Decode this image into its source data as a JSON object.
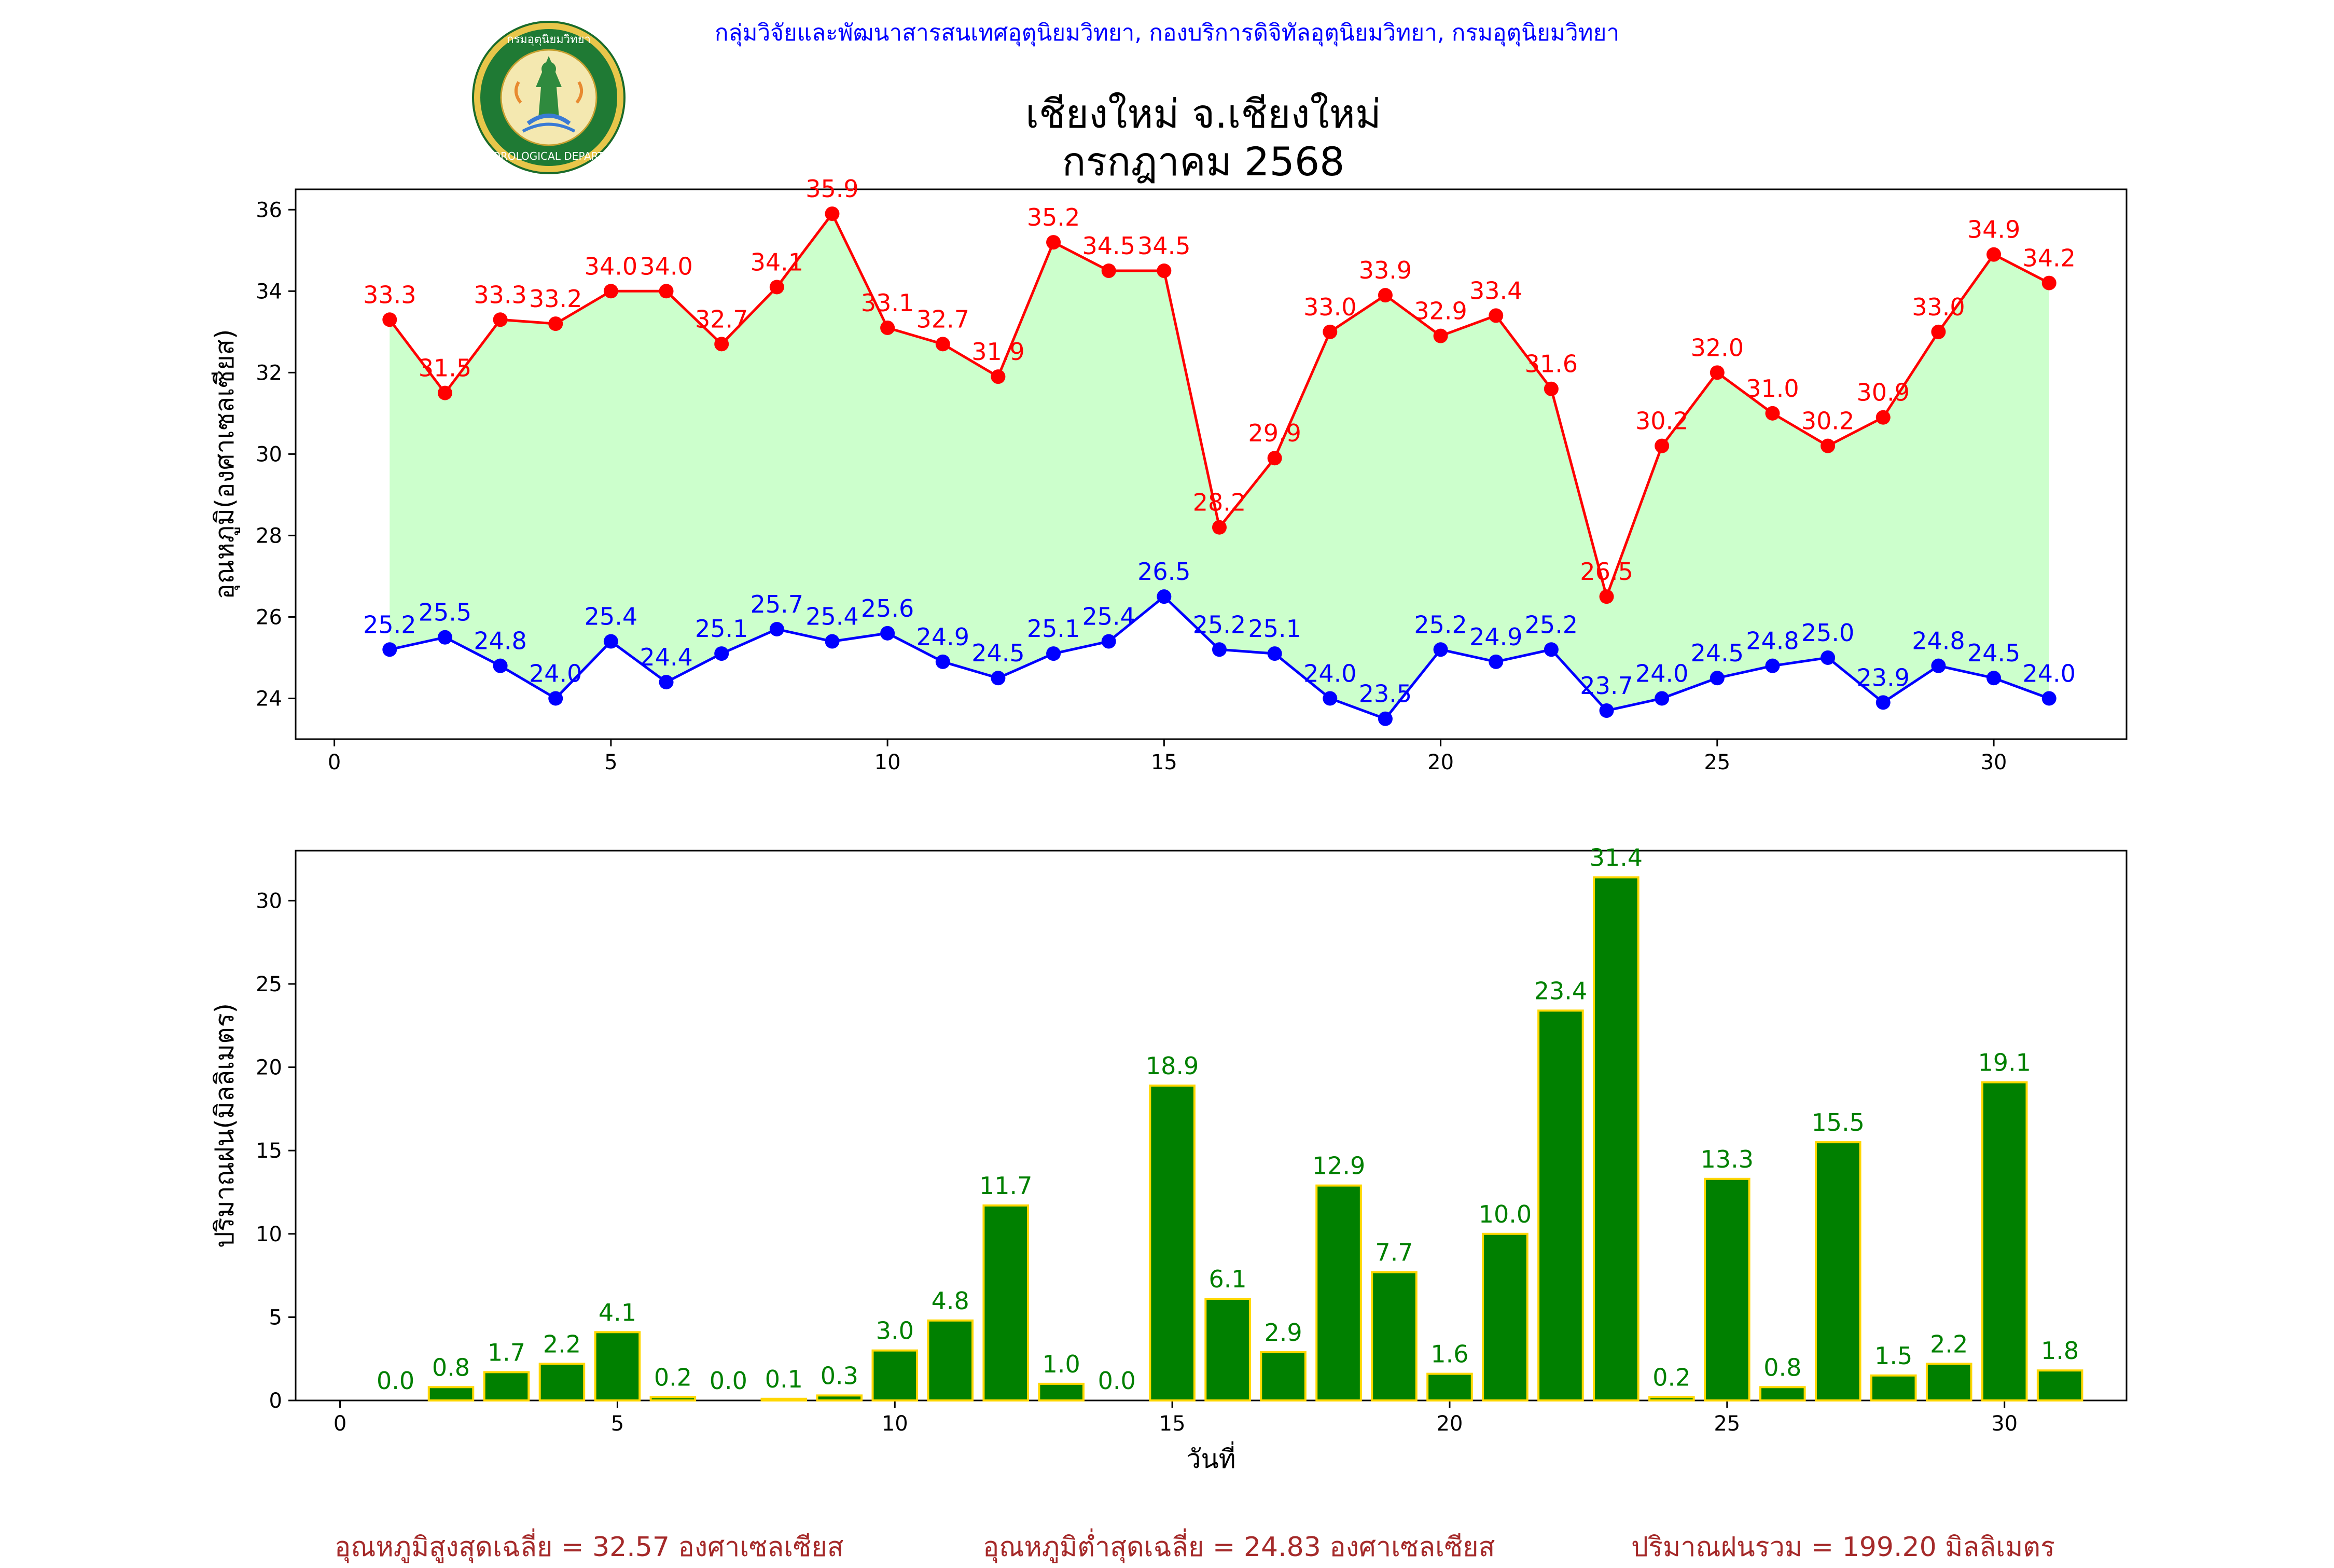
{
  "header": {
    "credit": "กลุ่มวิจัยและพัฒนาสารสนเทศอุตุนิยมวิทยา, กองบริการดิจิทัลอุตุนิยมวิทยา, กรมอุตุนิยมวิทยา",
    "title_line1": "เชียงใหม่ จ.เชียงใหม่",
    "title_line2": "กรกฎาคม 2568",
    "logo": {
      "text_top": "กรมอุตุนิยมวิทยา",
      "text_bottom": "METEOROLOGICAL DEPARTMENT"
    }
  },
  "colors": {
    "max_line": "#ff0000",
    "min_line": "#0000ff",
    "fill": "#ccffcc",
    "bar": "#008000",
    "bar_edge": "#ffd700",
    "bar_label": "#008000",
    "stats": "#a52a2a",
    "credit": "#0000ff"
  },
  "chart_data": [
    {
      "type": "line",
      "ylabel": "อุณหภูมิ(องศาเซลเซียส)",
      "xlim": [
        -0.7,
        32.4
      ],
      "ylim": [
        23.0,
        36.5
      ],
      "xticks": [
        0,
        5,
        10,
        15,
        20,
        25,
        30
      ],
      "yticks": [
        24,
        26,
        28,
        30,
        32,
        34,
        36
      ],
      "x": [
        1,
        2,
        3,
        4,
        5,
        6,
        7,
        8,
        9,
        10,
        11,
        12,
        13,
        14,
        15,
        16,
        17,
        18,
        19,
        20,
        21,
        22,
        23,
        24,
        25,
        26,
        27,
        28,
        29,
        30,
        31
      ],
      "series": [
        {
          "values": [
            33.3,
            31.5,
            33.3,
            33.2,
            34.0,
            34.0,
            32.7,
            34.1,
            35.9,
            33.1,
            32.7,
            31.9,
            35.2,
            34.5,
            34.5,
            28.2,
            29.9,
            33.0,
            33.9,
            32.9,
            33.4,
            31.6,
            26.5,
            30.2,
            32.0,
            31.0,
            30.2,
            30.9,
            33.0,
            34.9,
            34.2
          ],
          "color": "#ff0000"
        },
        {
          "values": [
            25.2,
            25.5,
            24.8,
            24.0,
            25.4,
            24.4,
            25.1,
            25.7,
            25.4,
            25.6,
            24.9,
            24.5,
            25.1,
            25.4,
            26.5,
            25.2,
            25.1,
            24.0,
            23.5,
            25.2,
            24.9,
            25.2,
            23.7,
            24.0,
            24.5,
            24.8,
            25.0,
            23.9,
            24.8,
            24.5,
            24.0
          ],
          "color": "#0000ff"
        }
      ],
      "fill_between": true,
      "grid": false
    },
    {
      "type": "bar",
      "ylabel": "ปริมาณฝน(มิลลิเมตร)",
      "xlabel": "วันที่",
      "xlim": [
        -0.8,
        32.2
      ],
      "ylim": [
        0,
        33.0
      ],
      "xticks": [
        0,
        5,
        10,
        15,
        20,
        25,
        30
      ],
      "yticks": [
        0,
        5,
        10,
        15,
        20,
        25,
        30
      ],
      "x": [
        1,
        2,
        3,
        4,
        5,
        6,
        7,
        8,
        9,
        10,
        11,
        12,
        13,
        14,
        15,
        16,
        17,
        18,
        19,
        20,
        21,
        22,
        23,
        24,
        25,
        26,
        27,
        28,
        29,
        30,
        31
      ],
      "values": [
        0.0,
        0.8,
        1.7,
        2.2,
        4.1,
        0.2,
        0.0,
        0.1,
        0.3,
        3.0,
        4.8,
        11.7,
        1.0,
        0.0,
        18.9,
        6.1,
        2.9,
        12.9,
        7.7,
        1.6,
        10.0,
        23.4,
        31.4,
        0.2,
        13.3,
        0.8,
        15.5,
        1.5,
        2.2,
        19.1,
        1.8
      ],
      "grid": false
    }
  ],
  "stats": {
    "avg_max": "อุณหภูมิสูงสุดเฉลี่ย = 32.57 องศาเซลเซียส",
    "avg_min": "อุณหภูมิต่ำสุดเฉลี่ย = 24.83 องศาเซลเซียส",
    "total_rain": "ปริมาณฝนรวม = 199.20 มิลลิเมตร"
  }
}
